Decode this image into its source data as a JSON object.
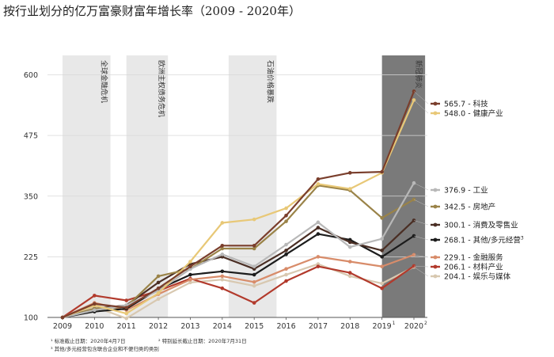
{
  "chart_data": {
    "type": "line",
    "title": "按行业划分的亿万富豪财富年增长率（2009 - 2020年）",
    "xlabel": "",
    "ylabel": "",
    "x": [
      "2009",
      "2010",
      "2011",
      "2012",
      "2013",
      "2014",
      "2015",
      "2016",
      "2017",
      "2018",
      "2019",
      "2020"
    ],
    "x_superscripts": {
      "2019": "1",
      "2020": "2"
    },
    "yticks": [
      100,
      225,
      350,
      475,
      600
    ],
    "ylim": [
      100,
      640
    ],
    "grid": "horizontal",
    "legend_position": "right",
    "bands": [
      {
        "label": "全球金融危机",
        "start": 2009.0,
        "end": 2010.5,
        "color": "#e8e8e8"
      },
      {
        "label": "欧洲主权债务危机",
        "start": 2011.0,
        "end": 2012.3,
        "color": "#e8e8e8"
      },
      {
        "label": "石油价格暴跌",
        "start": 2014.2,
        "end": 2015.7,
        "color": "#e8e8e8"
      },
      {
        "label": "新冠肺炎",
        "start": 2019.0,
        "end": 2020.35,
        "color": "#7a7a7a"
      }
    ],
    "series": [
      {
        "name": "科技",
        "legend": "565.7 - 科技",
        "color": "#7a3e2c",
        "values": [
          100,
          128,
          120,
          160,
          205,
          248,
          248,
          310,
          385,
          398,
          400,
          566
        ]
      },
      {
        "name": "健康产业",
        "legend": "548.0 - 健康产业",
        "color": "#e8c877",
        "values": [
          100,
          125,
          108,
          150,
          215,
          295,
          302,
          325,
          375,
          365,
          398,
          548
        ]
      },
      {
        "name": "工业",
        "legend": "376.9 - 工业",
        "color": "#b8b8b8",
        "values": [
          100,
          115,
          125,
          155,
          200,
          230,
          205,
          250,
          296,
          245,
          262,
          377
        ]
      },
      {
        "name": "房地产",
        "legend": "342.5 - 房地产",
        "color": "#9a8348",
        "values": [
          100,
          118,
          122,
          185,
          200,
          242,
          242,
          298,
          372,
          362,
          305,
          343
        ]
      },
      {
        "name": "消费及零售业",
        "legend": "300.1 - 消费及零售业",
        "color": "#4a2e24",
        "values": [
          100,
          118,
          125,
          172,
          210,
          225,
          200,
          238,
          285,
          255,
          238,
          300
        ]
      },
      {
        "name": "其他/多元经营",
        "legend": "268.1 - 其他/多元经营",
        "legend_sup": "3",
        "color": "#1c1c1c",
        "values": [
          100,
          112,
          118,
          158,
          188,
          195,
          188,
          230,
          272,
          260,
          225,
          268
        ]
      },
      {
        "name": "金融服务",
        "legend": "229.1 - 金融服务",
        "color": "#d88c6a",
        "values": [
          100,
          130,
          115,
          148,
          178,
          185,
          173,
          200,
          225,
          215,
          205,
          229
        ]
      },
      {
        "name": "材料产业",
        "legend": "206.1 - 材料产业",
        "color": "#b23a2c",
        "values": [
          100,
          145,
          135,
          155,
          180,
          160,
          130,
          175,
          205,
          192,
          160,
          206
        ]
      },
      {
        "name": "娱乐与媒体",
        "legend": "204.1 - 娱乐与媒体",
        "color": "#d8c8b0",
        "values": [
          100,
          122,
          98,
          138,
          172,
          178,
          165,
          188,
          210,
          185,
          170,
          204
        ]
      }
    ],
    "footnotes": [
      "¹ 标准截止日期：2020年4月7日",
      "² 特别延长截止日期：2020年7月31日",
      "³ 其他/多元经营包含联合企业和不便归类的类别"
    ]
  }
}
